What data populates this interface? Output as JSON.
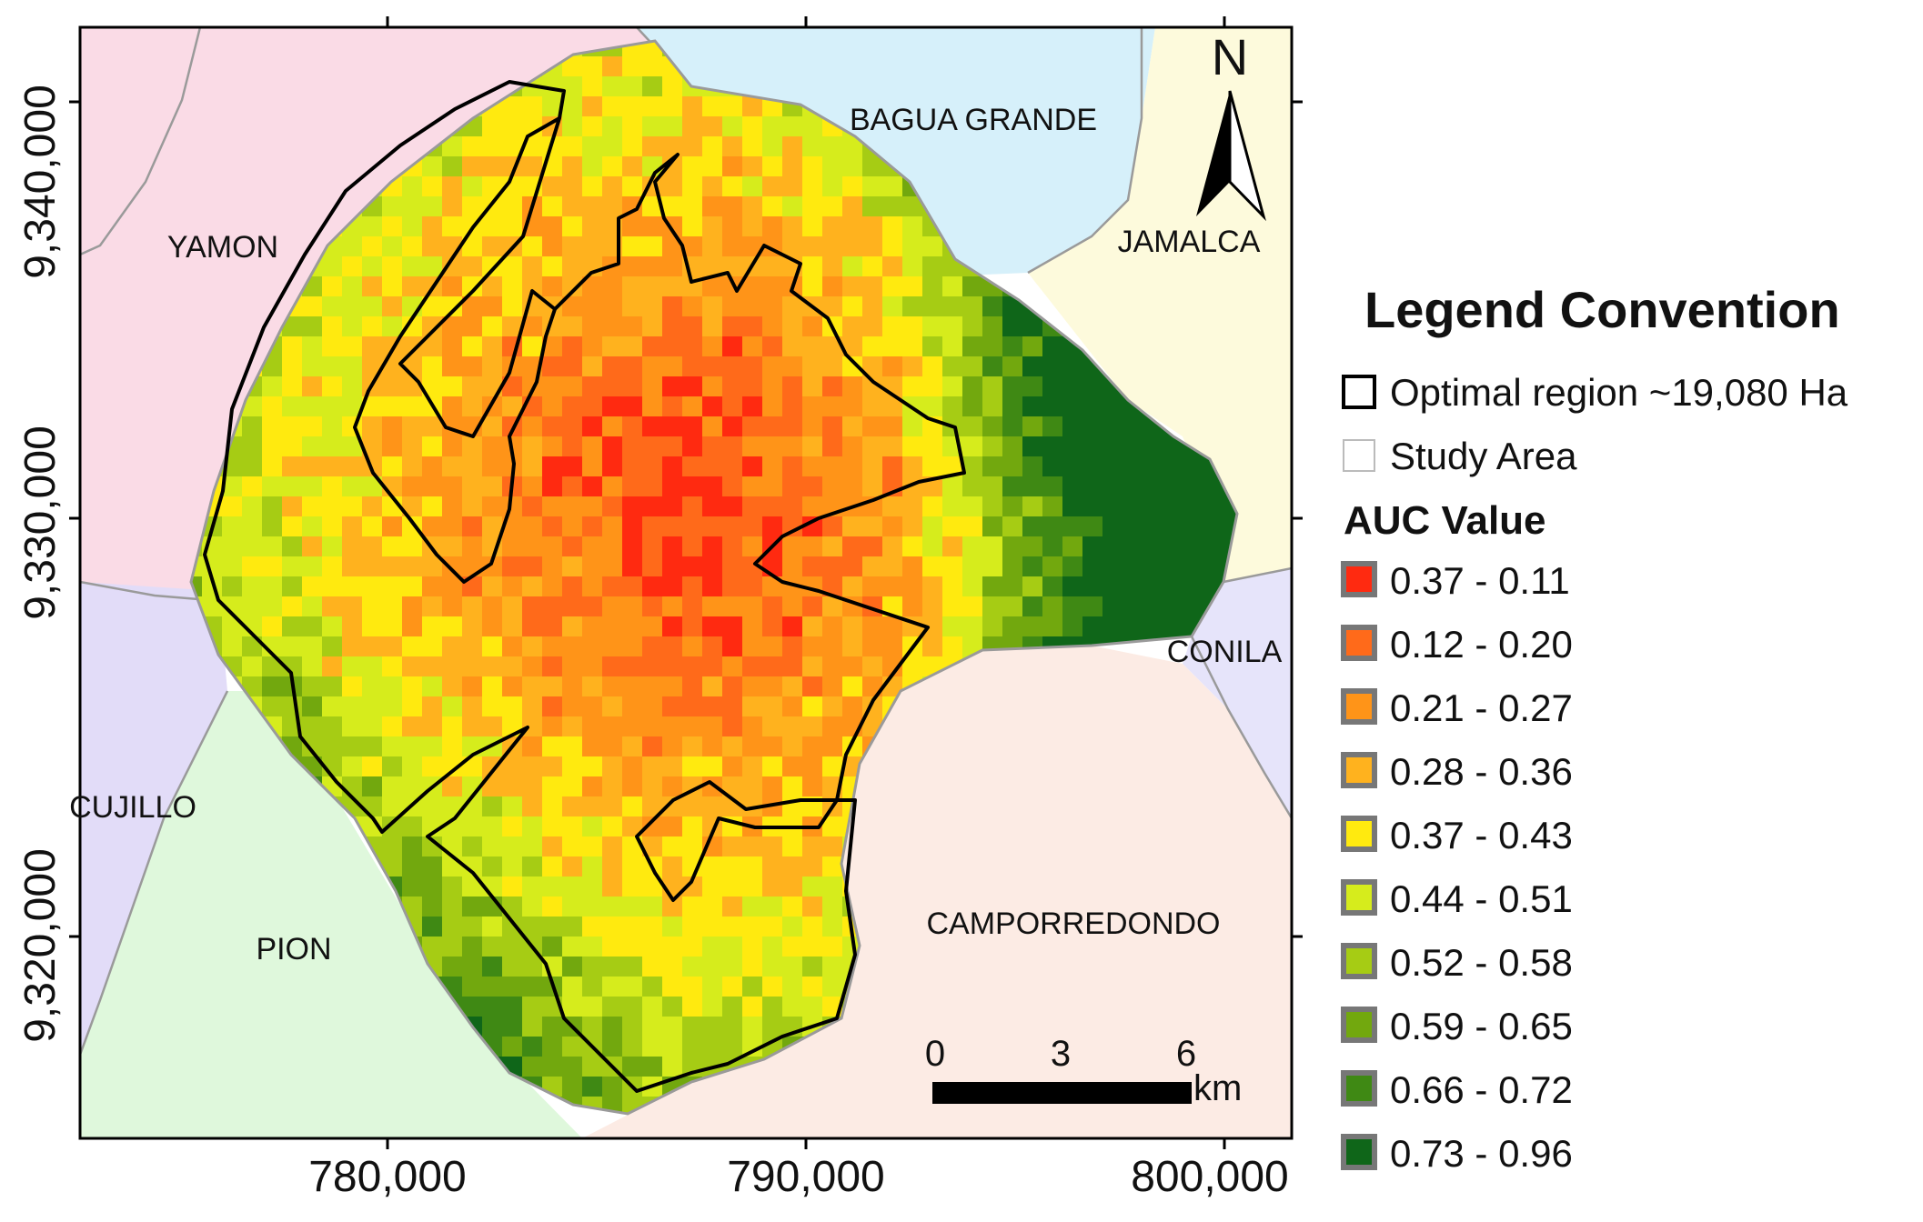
{
  "axes": {
    "x_ticks": [
      "780,000",
      "790,000",
      "800,000"
    ],
    "y_ticks": [
      "9,340,000",
      "9,330,000",
      "9,320,000"
    ]
  },
  "districts": [
    "YAMON",
    "BAGUA GRANDE",
    "JAMALCA",
    "CONILA",
    "CUJILLO",
    "PION",
    "CAMPORREDONDO"
  ],
  "north_arrow": {
    "label": "N",
    "icon": "north-arrow-icon"
  },
  "scale_bar": {
    "ticks": [
      "0",
      "3",
      "6"
    ],
    "unit": "km"
  },
  "legend": {
    "title": "Legend Convention",
    "optimal_region": "Optimal region ~19,080 Ha",
    "study_area": "Study Area",
    "auc_title": "AUC Value",
    "classes": [
      {
        "label": "0.37 - 0.11",
        "color": "#ff2a10"
      },
      {
        "label": "0.12 - 0.20",
        "color": "#ff6a1a"
      },
      {
        "label": "0.21 - 0.27",
        "color": "#ff9418"
      },
      {
        "label": "0.28 - 0.36",
        "color": "#ffb21e"
      },
      {
        "label": "0.37 - 0.43",
        "color": "#ffea0f"
      },
      {
        "label": "0.44 - 0.51",
        "color": "#d6ec1c"
      },
      {
        "label": "0.52 - 0.58",
        "color": "#a6cc14"
      },
      {
        "label": "0.59 - 0.65",
        "color": "#72a80e"
      },
      {
        "label": "0.66 - 0.72",
        "color": "#3f8914"
      },
      {
        "label": "0.73 - 0.96",
        "color": "#0f6619"
      }
    ]
  },
  "colors": {
    "yamon": "#fadbe6",
    "bagua_grande": "#d6f0fa",
    "jamalca": "#fdfadc",
    "conila": "#e6e4fa",
    "cujillo": "#e2dcf8",
    "pion": "#dff8dc",
    "camporredondo": "#fcebe4",
    "boundary": "#9a9a9a",
    "optimal_outline": "#000000"
  }
}
